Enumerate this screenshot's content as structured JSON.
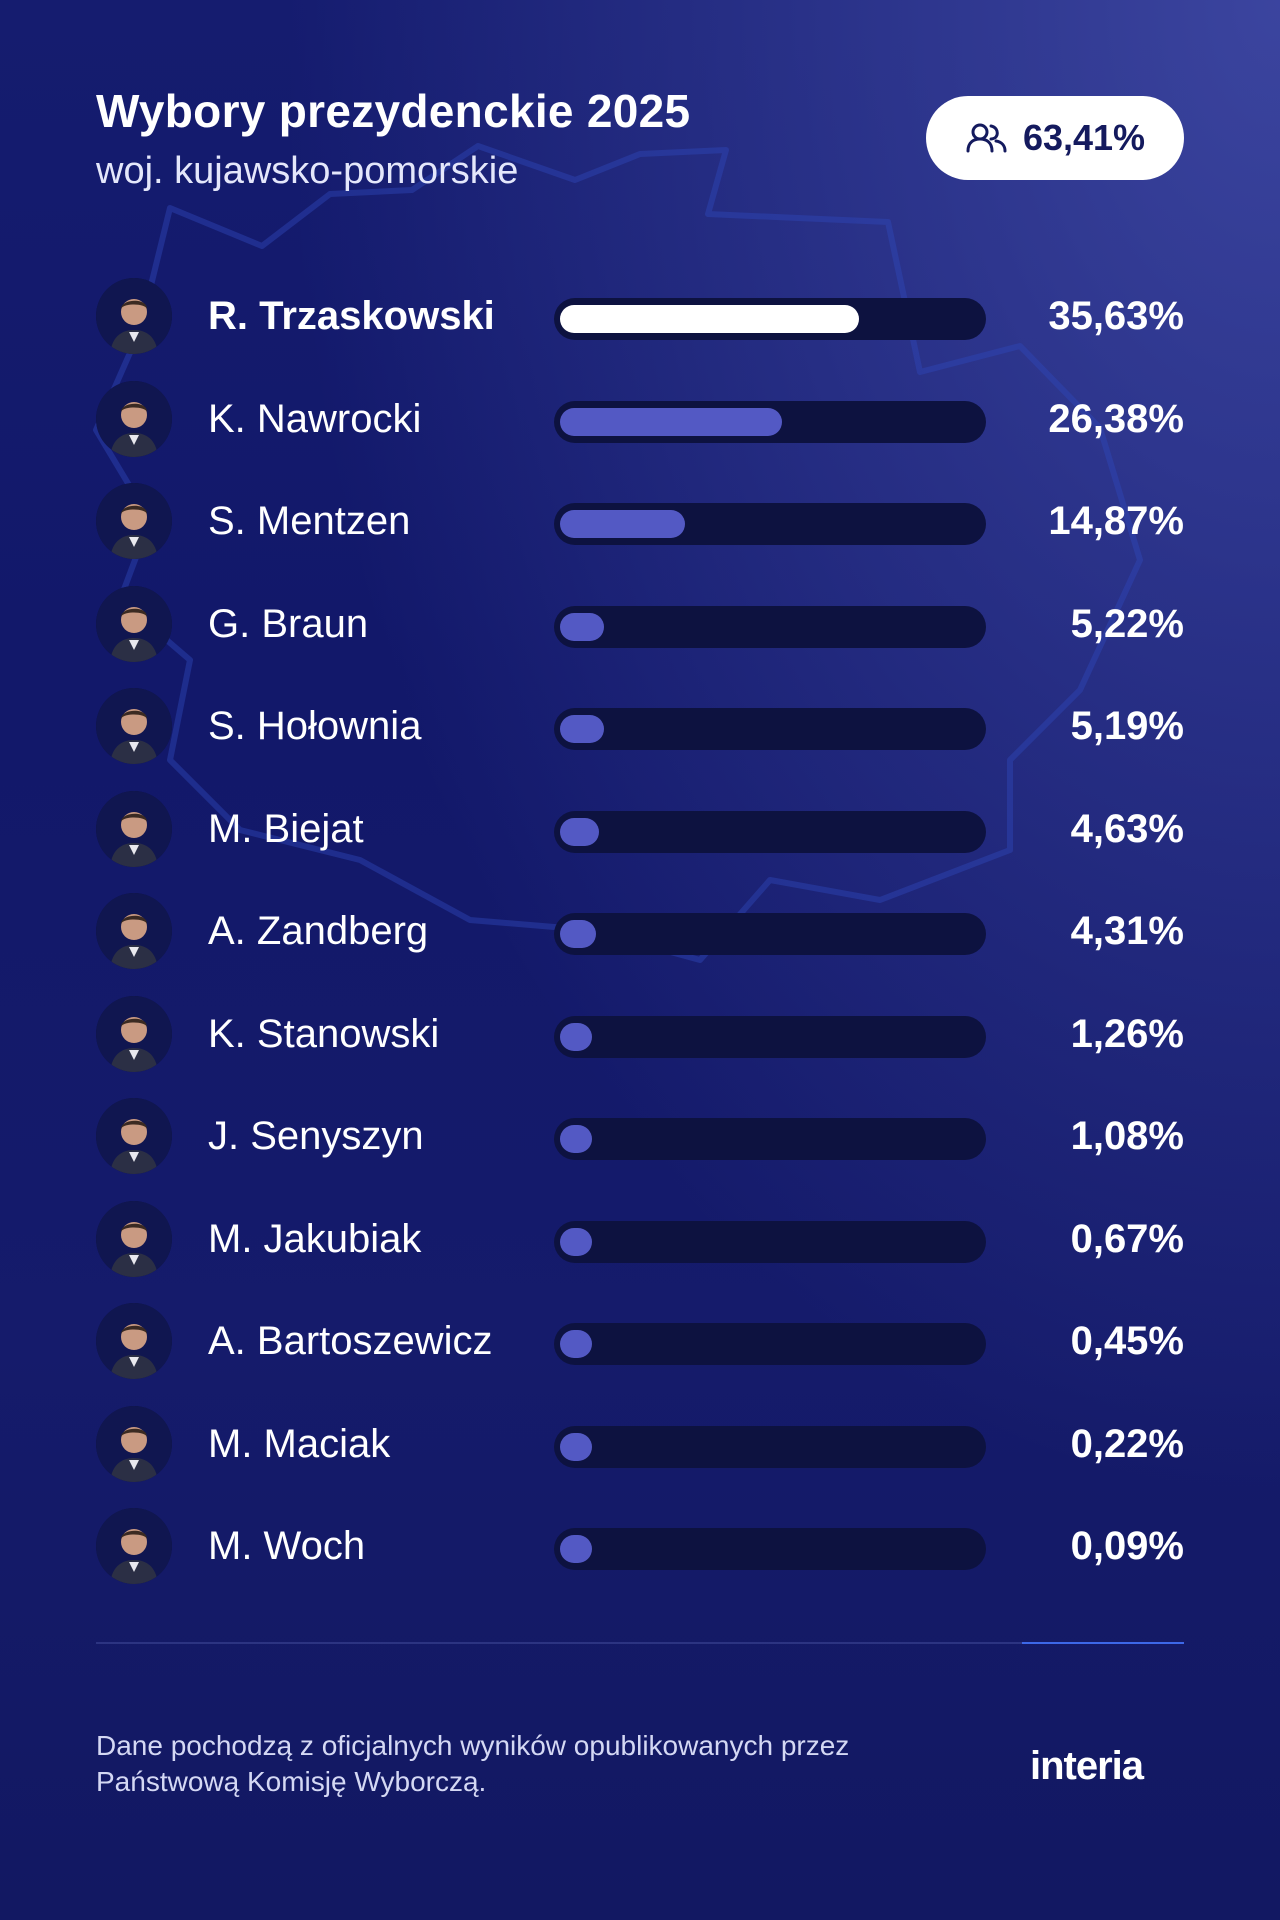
{
  "header": {
    "title": "Wybory prezydenckie 2025",
    "subtitle": "woj. kujawsko-pomorskie",
    "turnout": "63,41%",
    "turnout_icon": "people-icon"
  },
  "chart_data": {
    "type": "bar",
    "orientation": "horizontal",
    "title": "Wybory prezydenckie 2025",
    "subtitle": "woj. kujawsko-pomorskie",
    "unit": "%",
    "xlim": [
      0,
      50
    ],
    "categories": [
      "R. Trzaskowski",
      "K. Nawrocki",
      "S. Mentzen",
      "G. Braun",
      "S. Hołownia",
      "M. Biejat",
      "A. Zandberg",
      "K. Stanowski",
      "J. Senyszyn",
      "M. Jakubiak",
      "A. Bartoszewicz",
      "M. Maciak",
      "M. Woch"
    ],
    "values": [
      35.63,
      26.38,
      14.87,
      5.22,
      5.19,
      4.63,
      4.31,
      1.26,
      1.08,
      0.67,
      0.45,
      0.22,
      0.09
    ],
    "labels": [
      "35,63%",
      "26,38%",
      "14,87%",
      "5,22%",
      "5,19%",
      "4,63%",
      "4,31%",
      "1,26%",
      "1,08%",
      "0,67%",
      "0,45%",
      "0,22%",
      "0,09%"
    ],
    "highlight_index": 0,
    "colors": {
      "highlight": "#ffffff",
      "bar": "#5359c4",
      "track": "#0d1240"
    }
  },
  "footer": {
    "note_lines": [
      "Dane pochodzą z oficjalnych wyników opublikowanych przez",
      "Państwową Komisję Wyborczą."
    ],
    "logo": "interia"
  },
  "theme": {
    "background": "#141a6c",
    "accent": "#3d68e8"
  }
}
